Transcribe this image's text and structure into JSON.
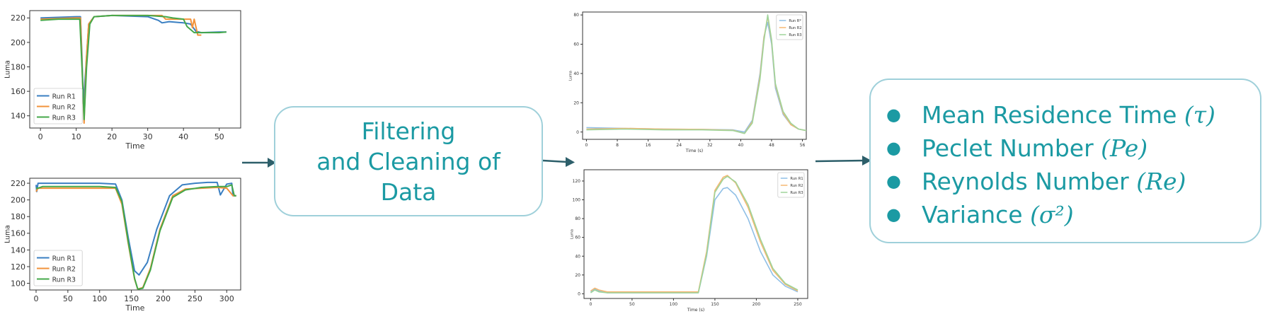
{
  "colors": {
    "teal_text": "#1b9aa3",
    "box_border": "#9fd0da",
    "arrow": "#2d5f6a",
    "run_r1": "#3a7fc2",
    "run_r2": "#f2933b",
    "run_r3": "#44a84a",
    "run_r1_light": "#8fbfe6",
    "run_r2_light": "#f5b872",
    "run_r3_light": "#9fd49a"
  },
  "process_box": {
    "lines": [
      "Filtering",
      "and Cleaning of",
      "Data"
    ]
  },
  "results_box": {
    "items": [
      {
        "label": "Mean Residence Time",
        "symbol": "(τ)"
      },
      {
        "label": "Peclet Number",
        "symbol": "(Pe)"
      },
      {
        "label": "Reynolds Number",
        "symbol": "(Re)"
      },
      {
        "label": "Variance",
        "symbol": "(σ²)"
      }
    ]
  },
  "chart_data": [
    {
      "type": "line",
      "xlabel": "Time",
      "ylabel": "Luma",
      "xlim": [
        -3,
        56
      ],
      "ylim": [
        130,
        226
      ],
      "xticks": [
        "0",
        "10",
        "20",
        "30",
        "40",
        "50"
      ],
      "yticks": [
        "140",
        "160",
        "180",
        "200",
        "220"
      ],
      "legend": "lower-left",
      "series": [
        {
          "name": "Run R1",
          "color": "#3a7fc2",
          "x": [
            0,
            5,
            10,
            11.2,
            11.6,
            12,
            12.6,
            13.5,
            15,
            20,
            30,
            33,
            34,
            36,
            40,
            42,
            43.5,
            45,
            50,
            52
          ],
          "y": [
            220,
            220.5,
            221,
            221,
            190,
            150,
            175,
            215,
            221,
            222,
            221,
            218,
            216,
            217,
            216,
            215,
            209,
            208,
            208.5,
            208.5
          ]
        },
        {
          "name": "Run R2",
          "color": "#f2933b",
          "x": [
            0,
            5,
            10,
            11.2,
            11.8,
            12.2,
            12.8,
            13.5,
            15,
            20,
            30,
            34,
            35,
            36,
            40,
            42,
            42.5,
            43,
            44,
            45
          ],
          "y": [
            219,
            219.5,
            220,
            220,
            165,
            134,
            185,
            215,
            221,
            222,
            222,
            222,
            219,
            219,
            219,
            219,
            212,
            219,
            206,
            206
          ]
        },
        {
          "name": "Run R3",
          "color": "#44a84a",
          "x": [
            0,
            5,
            10,
            11,
            11.7,
            12.2,
            12.9,
            13.8,
            15,
            20,
            30,
            35,
            37,
            40,
            41,
            43,
            45,
            50,
            52
          ],
          "y": [
            218,
            219,
            219,
            219,
            175,
            137,
            180,
            215,
            221,
            222,
            222,
            221,
            220,
            219,
            213,
            208,
            208,
            208,
            208.5
          ]
        }
      ]
    },
    {
      "type": "line",
      "xlabel": "Time",
      "ylabel": "Luma",
      "xlim": [
        -10,
        322
      ],
      "ylim": [
        92,
        226
      ],
      "xticks": [
        "0",
        "50",
        "100",
        "150",
        "200",
        "250",
        "300"
      ],
      "yticks": [
        "100",
        "120",
        "140",
        "160",
        "180",
        "200",
        "220"
      ],
      "legend": "lower-left",
      "series": [
        {
          "name": "Run R1",
          "color": "#3a7fc2",
          "x": [
            0,
            1,
            3,
            10,
            50,
            100,
            125,
            135,
            145,
            155,
            162,
            175,
            190,
            210,
            230,
            250,
            270,
            285,
            290,
            300,
            308,
            310,
            315
          ],
          "y": [
            218,
            210,
            220,
            220,
            220,
            220,
            219,
            200,
            155,
            115,
            110,
            125,
            165,
            205,
            218,
            220,
            221,
            221,
            206,
            219,
            220,
            205,
            205
          ]
        },
        {
          "name": "Run R2",
          "color": "#f2933b",
          "x": [
            0,
            3,
            10,
            50,
            100,
            125,
            135,
            145,
            155,
            160,
            168,
            180,
            195,
            215,
            235,
            260,
            285,
            300,
            310,
            315
          ],
          "y": [
            210,
            214,
            214,
            214,
            214,
            214,
            195,
            148,
            105,
            93,
            95,
            118,
            165,
            205,
            213,
            214,
            215,
            214,
            205,
            205
          ]
        },
        {
          "name": "Run R3",
          "color": "#44a84a",
          "x": [
            0,
            3,
            10,
            50,
            100,
            125,
            135,
            145,
            155,
            160,
            168,
            180,
            195,
            215,
            235,
            260,
            285,
            300,
            308,
            312,
            315
          ],
          "y": [
            214,
            214,
            216,
            216,
            216,
            215,
            198,
            150,
            106,
            93,
            94,
            116,
            163,
            203,
            212,
            215,
            216,
            216,
            218,
            205,
            205
          ]
        }
      ]
    },
    {
      "type": "line",
      "xlabel": "Time (s)",
      "ylabel": "Luma",
      "xlim": [
        -1,
        57
      ],
      "ylim": [
        -5,
        82
      ],
      "xticks": [
        "0",
        "8",
        "16",
        "24",
        "32",
        "40",
        "48",
        "56"
      ],
      "yticks": [
        "0",
        "20",
        "40",
        "60",
        "80"
      ],
      "legend": "upper-right",
      "series": [
        {
          "name": "Run R*",
          "color": "#8fbfe6",
          "x": [
            0,
            10,
            20,
            30,
            38,
            41,
            43,
            45,
            46,
            47,
            48,
            49,
            51,
            53,
            55,
            57
          ],
          "y": [
            3,
            2.5,
            2,
            1.8,
            1.5,
            0,
            8,
            40,
            65,
            75,
            60,
            30,
            12,
            5,
            2,
            1
          ]
        },
        {
          "name": "Run R2",
          "color": "#f5b872",
          "x": [
            0,
            10,
            20,
            30,
            38,
            41,
            43,
            45,
            46,
            47,
            48,
            49,
            51,
            53,
            55,
            57
          ],
          "y": [
            2,
            2.5,
            2,
            1.8,
            1.2,
            -1,
            7,
            38,
            64,
            79,
            62,
            32,
            13,
            5,
            2,
            1
          ]
        },
        {
          "name": "Run R3",
          "color": "#9fd49a",
          "x": [
            0,
            10,
            20,
            30,
            38,
            41,
            43,
            45,
            46,
            47,
            48,
            49,
            51,
            53,
            55,
            57
          ],
          "y": [
            1.5,
            2,
            1.5,
            1.5,
            1,
            -1,
            6,
            36,
            62,
            80,
            63,
            33,
            14,
            6,
            2,
            1
          ]
        }
      ]
    },
    {
      "type": "line",
      "xlabel": "Time (s)",
      "ylabel": "Luma",
      "xlim": [
        -8,
        262
      ],
      "ylim": [
        -5,
        132
      ],
      "xticks": [
        "0",
        "50",
        "100",
        "150",
        "200",
        "250"
      ],
      "yticks": [
        "0",
        "20",
        "40",
        "60",
        "80",
        "100",
        "120"
      ],
      "legend": "upper-right",
      "series": [
        {
          "name": "Run R1",
          "color": "#8fbfe6",
          "x": [
            0,
            5,
            10,
            20,
            50,
            100,
            130,
            140,
            150,
            160,
            165,
            175,
            190,
            205,
            220,
            235,
            250
          ],
          "y": [
            2,
            5,
            3,
            1,
            1,
            1,
            1,
            40,
            100,
            112,
            113,
            105,
            80,
            45,
            20,
            8,
            2
          ]
        },
        {
          "name": "Run R2",
          "color": "#f5b872",
          "x": [
            0,
            5,
            10,
            20,
            50,
            100,
            130,
            140,
            150,
            160,
            165,
            175,
            190,
            205,
            220,
            235,
            250
          ],
          "y": [
            3,
            6,
            4,
            2,
            2,
            2,
            2,
            45,
            110,
            124,
            126,
            118,
            92,
            55,
            25,
            10,
            3
          ]
        },
        {
          "name": "Run R3",
          "color": "#9fd49a",
          "x": [
            0,
            5,
            10,
            20,
            50,
            100,
            130,
            140,
            150,
            160,
            165,
            175,
            190,
            205,
            220,
            235,
            250
          ],
          "y": [
            1,
            4,
            2,
            1,
            1,
            1,
            1,
            42,
            108,
            122,
            125,
            119,
            95,
            58,
            27,
            11,
            4
          ]
        }
      ]
    }
  ]
}
